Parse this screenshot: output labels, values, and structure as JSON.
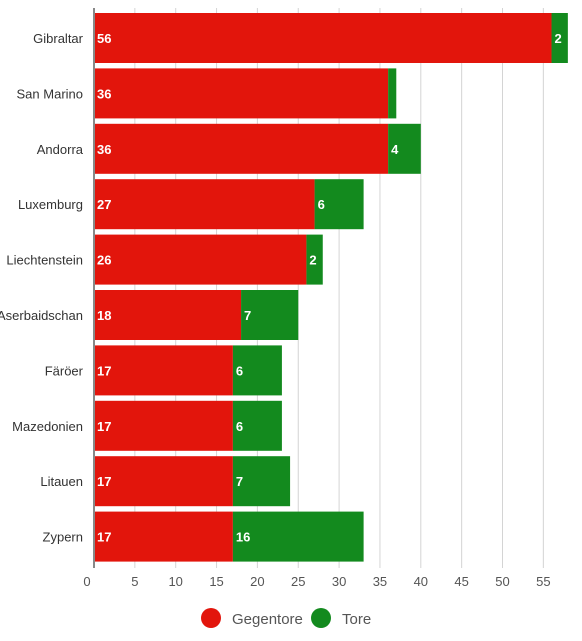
{
  "chart_data": {
    "type": "bar",
    "orientation": "horizontal",
    "stacked": true,
    "categories": [
      "Gibraltar",
      "San Marino",
      "Andorra",
      "Luxemburg",
      "Liechtenstein",
      "Aserbaidschan",
      "Färöer",
      "Mazedonien",
      "Litauen",
      "Zypern"
    ],
    "series": [
      {
        "name": "Gegentore",
        "color": "#e2150c",
        "values": [
          56,
          36,
          36,
          27,
          26,
          18,
          17,
          17,
          17,
          17
        ],
        "labels": [
          "56",
          "36",
          "36",
          "27",
          "26",
          "18",
          "17",
          "17",
          "17",
          "17"
        ]
      },
      {
        "name": "Tore",
        "color": "#138a1e",
        "values": [
          2,
          1,
          4,
          6,
          2,
          7,
          6,
          6,
          7,
          16
        ],
        "labels": [
          "2",
          "",
          "4",
          "6",
          "2",
          "7",
          "6",
          "6",
          "7",
          "16"
        ]
      }
    ],
    "xlim": [
      0,
      58
    ],
    "xticks": [
      "0",
      "5",
      "10",
      "15",
      "20",
      "25",
      "30",
      "35",
      "40",
      "45",
      "50",
      "55"
    ],
    "grid": true,
    "legend_position": "bottom-center",
    "title": "",
    "xlabel": "",
    "ylabel": ""
  }
}
